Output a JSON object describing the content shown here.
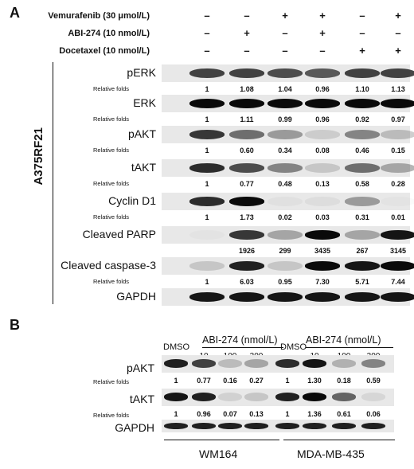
{
  "panel_a": {
    "letter": "A",
    "cell_line": "A375RF21",
    "treatments": [
      {
        "label": "Vemurafenib (30 μmol/L)",
        "signs": [
          "–",
          "–",
          "+",
          "+",
          "–",
          "+"
        ]
      },
      {
        "label": "ABI-274 (10 nmol/L)",
        "signs": [
          "–",
          "+",
          "–",
          "+",
          "–",
          "–"
        ]
      },
      {
        "label": "Docetaxel (10 nmol/L)",
        "signs": [
          "–",
          "–",
          "–",
          "–",
          "+",
          "+"
        ]
      }
    ],
    "blots": [
      {
        "name": "pERK",
        "folds_label": "Relative folds",
        "folds": [
          "1",
          "1.08",
          "1.04",
          "0.96",
          "1.10",
          "1.13"
        ],
        "intensity": [
          0.75,
          0.75,
          0.7,
          0.65,
          0.75,
          0.75
        ]
      },
      {
        "name": "ERK",
        "folds_label": "Relative folds",
        "folds": [
          "1",
          "1.11",
          "0.99",
          "0.96",
          "0.92",
          "0.97"
        ],
        "intensity": [
          1,
          1,
          1,
          1,
          1,
          1
        ]
      },
      {
        "name": "pAKT",
        "folds_label": "Relative folds",
        "folds": [
          "1",
          "0.60",
          "0.34",
          "0.08",
          "0.46",
          "0.15"
        ],
        "intensity": [
          0.8,
          0.55,
          0.35,
          0.12,
          0.45,
          0.2
        ]
      },
      {
        "name": "tAKT",
        "folds_label": "Relative folds",
        "folds": [
          "1",
          "0.77",
          "0.48",
          "0.13",
          "0.58",
          "0.28"
        ],
        "intensity": [
          0.85,
          0.7,
          0.45,
          0.15,
          0.55,
          0.3
        ]
      },
      {
        "name": "Cyclin D1",
        "folds_label": "Relative folds",
        "folds": [
          "1",
          "1.73",
          "0.02",
          "0.03",
          "0.31",
          "0.01"
        ],
        "intensity": [
          0.85,
          1,
          0.03,
          0.05,
          0.35,
          0.02
        ]
      },
      {
        "name": "Cleaved PARP",
        "folds_label": "",
        "folds": [
          "",
          "1926",
          "299",
          "3435",
          "267",
          "3145"
        ],
        "intensity": [
          0.02,
          0.8,
          0.3,
          1,
          0.3,
          0.95
        ]
      },
      {
        "name": "Cleaved caspase-3",
        "folds_label": "Relative folds",
        "folds": [
          "1",
          "6.03",
          "0.95",
          "7.30",
          "5.71",
          "7.44"
        ],
        "intensity": [
          0.15,
          0.9,
          0.15,
          1,
          0.95,
          1
        ]
      },
      {
        "name": "GAPDH",
        "folds_label": "",
        "folds": [
          "",
          "",
          "",
          "",
          "",
          ""
        ],
        "intensity": [
          0.95,
          0.95,
          0.95,
          0.95,
          0.95,
          0.95
        ]
      }
    ]
  },
  "panel_b": {
    "letter": "B",
    "dmso": "DMSO",
    "abi_header": "ABI-274 (nmol/L)",
    "doses": [
      "10",
      "100",
      "300"
    ],
    "groups": [
      "WM164",
      "MDA-MB-435"
    ],
    "blots": [
      {
        "name": "pAKT",
        "folds_label": "Relative folds",
        "folds": [
          "1",
          "0.77",
          "0.16",
          "0.27",
          "1",
          "1.30",
          "0.18",
          "0.59"
        ],
        "intensity": [
          0.9,
          0.75,
          0.2,
          0.3,
          0.85,
          0.95,
          0.25,
          0.45
        ]
      },
      {
        "name": "tAKT",
        "folds_label": "Relative folds",
        "folds": [
          "1",
          "0.96",
          "0.07",
          "0.13",
          "1",
          "1.36",
          "0.61",
          "0.06"
        ],
        "intensity": [
          0.95,
          0.9,
          0.1,
          0.15,
          0.9,
          1,
          0.6,
          0.08
        ]
      },
      {
        "name": "GAPDH",
        "folds_label": "",
        "folds": [
          "",
          "",
          "",
          "",
          "",
          "",
          "",
          ""
        ],
        "intensity": [
          0.9,
          0.9,
          0.9,
          0.9,
          0.9,
          0.9,
          0.9,
          0.9
        ]
      }
    ]
  }
}
